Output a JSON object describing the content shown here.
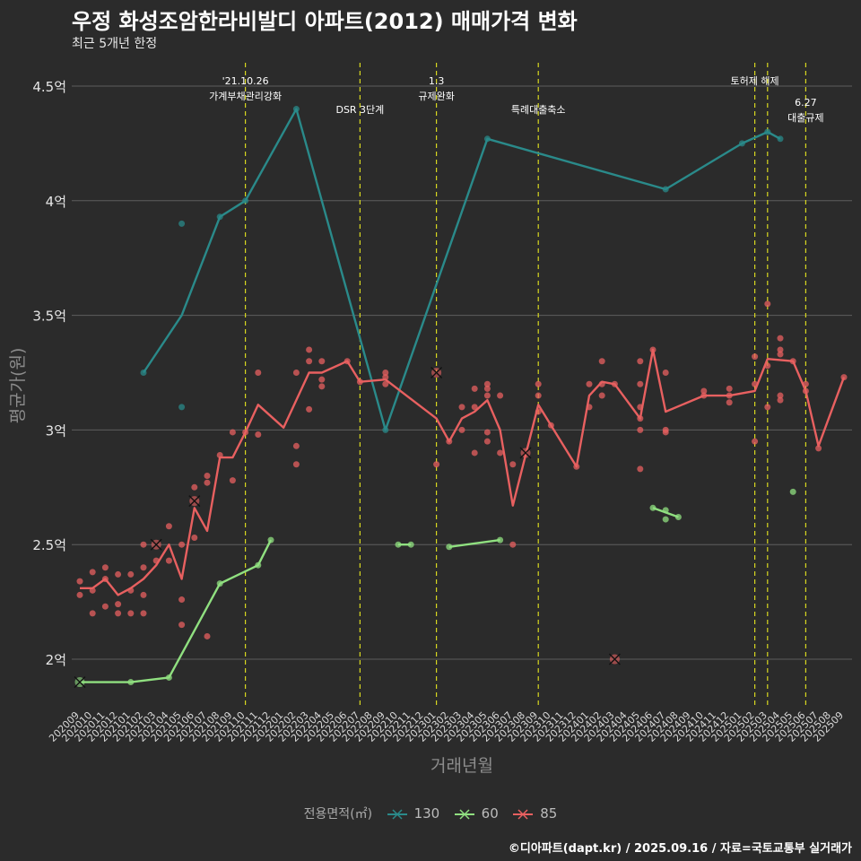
{
  "chart_data": {
    "type": "line",
    "title": "우정 화성조암한라비발디 아파트(2012) 매매가격 변화",
    "subtitle": "최근 5개년 한정",
    "xlabel": "거래년월",
    "ylabel": "평균가(원)",
    "caption": "©디아파트(dapt.kr) / 2025.09.16 / 자료=국토교통부 실거래가",
    "legend_title": "전용면적(㎡)",
    "legend_position": "bottom",
    "grid": true,
    "ylim": [
      1.8,
      4.6
    ],
    "y_ticks": [
      2,
      2.5,
      3,
      3.5,
      4,
      4.5
    ],
    "y_tick_labels": [
      "2억",
      "2.5억",
      "3억",
      "3.5억",
      "4억",
      "4.5억"
    ],
    "x_categories": [
      "202009",
      "202010",
      "202011",
      "202012",
      "202101",
      "202102",
      "202103",
      "202104",
      "202105",
      "202106",
      "202107",
      "202108",
      "202109",
      "202110",
      "202111",
      "202112",
      "202201",
      "202202",
      "202203",
      "202204",
      "202205",
      "202206",
      "202207",
      "202208",
      "202209",
      "202210",
      "202211",
      "202212",
      "202301",
      "202302",
      "202303",
      "202304",
      "202305",
      "202306",
      "202307",
      "202308",
      "202309",
      "202310",
      "202311",
      "202312",
      "202401",
      "202402",
      "202403",
      "202404",
      "202405",
      "202406",
      "202407",
      "202408",
      "202409",
      "202410",
      "202411",
      "202412",
      "202501",
      "202502",
      "202503",
      "202504",
      "202505",
      "202506",
      "202507",
      "202508",
      "202509"
    ],
    "vlines": [
      {
        "x": "202110",
        "label": [
          "'21.10.26",
          "가계부채관리강화"
        ],
        "label_level": "high"
      },
      {
        "x": "202207",
        "label": [
          "DSR 3단계"
        ],
        "label_level": "low"
      },
      {
        "x": "202301",
        "label": [
          "1.3",
          "규제완화"
        ],
        "label_level": "high"
      },
      {
        "x": "202309",
        "label": [
          "특례대출축소"
        ],
        "label_level": "low"
      },
      {
        "x": "202502",
        "label": [
          "토허제 해제"
        ],
        "label_level": "high"
      },
      {
        "x": "202503",
        "label": [],
        "label_level": "low"
      },
      {
        "x": "202506",
        "label": [
          "6.27",
          "대출규제"
        ],
        "label_level": "low"
      }
    ],
    "series": [
      {
        "name": "130",
        "color": "#2a8a8a",
        "line": [
          [
            "202102",
            3.25
          ],
          [
            "202105",
            3.5
          ],
          [
            "202108",
            3.93
          ],
          [
            "202110",
            4.0
          ],
          [
            "202202",
            4.4
          ],
          [
            "202209",
            3.0
          ],
          [
            "202305",
            4.27
          ],
          [
            "202407",
            4.05
          ],
          [
            "202501",
            4.25
          ],
          [
            "202503",
            4.3
          ],
          [
            "202504",
            4.27
          ]
        ],
        "points": [
          [
            "202102",
            3.25
          ],
          [
            "202105",
            3.9
          ],
          [
            "202105",
            3.1
          ],
          [
            "202108",
            3.93
          ],
          [
            "202110",
            4.0
          ],
          [
            "202202",
            4.4
          ],
          [
            "202209",
            3.0
          ],
          [
            "202305",
            4.27
          ],
          [
            "202407",
            4.05
          ],
          [
            "202501",
            4.25
          ],
          [
            "202503",
            4.3
          ],
          [
            "202504",
            4.27
          ]
        ],
        "cancelled": []
      },
      {
        "name": "60",
        "color": "#90e080",
        "line": [
          [
            "202009",
            1.9
          ],
          [
            "202101",
            1.9
          ],
          [
            "202104",
            1.92
          ],
          [
            "202108",
            2.33
          ],
          [
            "202111",
            2.41
          ],
          [
            "202112",
            2.52
          ]
        ],
        "points": [
          [
            "202101",
            1.9
          ],
          [
            "202104",
            1.92
          ],
          [
            "202108",
            2.33
          ],
          [
            "202111",
            2.41
          ],
          [
            "202112",
            2.52
          ],
          [
            "202210",
            2.5
          ],
          [
            "202211",
            2.5
          ],
          [
            "202302",
            2.49
          ],
          [
            "202306",
            2.52
          ],
          [
            "202406",
            2.66
          ],
          [
            "202408",
            2.62
          ],
          [
            "202407",
            2.65
          ],
          [
            "202407",
            2.61
          ],
          [
            "202505",
            2.73
          ]
        ],
        "extra_lines": [
          [
            [
              "202210",
              2.5
            ],
            [
              "202211",
              2.5
            ]
          ],
          [
            [
              "202302",
              2.49
            ],
            [
              "202306",
              2.52
            ]
          ],
          [
            [
              "202406",
              2.66
            ],
            [
              "202408",
              2.62
            ]
          ]
        ],
        "cancelled": [
          [
            "202009",
            1.9
          ]
        ]
      },
      {
        "name": "85",
        "color": "#e86060",
        "line": [
          [
            "202009",
            2.31
          ],
          [
            "202010",
            2.31
          ],
          [
            "202011",
            2.35
          ],
          [
            "202012",
            2.28
          ],
          [
            "202101",
            2.31
          ],
          [
            "202102",
            2.35
          ],
          [
            "202103",
            2.41
          ],
          [
            "202104",
            2.5
          ],
          [
            "202105",
            2.35
          ],
          [
            "202106",
            2.66
          ],
          [
            "202107",
            2.56
          ],
          [
            "202108",
            2.88
          ],
          [
            "202109",
            2.88
          ],
          [
            "202110",
            2.99
          ],
          [
            "202111",
            3.11
          ],
          [
            "202201",
            3.01
          ],
          [
            "202203",
            3.25
          ],
          [
            "202204",
            3.25
          ],
          [
            "202206",
            3.3
          ],
          [
            "202207",
            3.21
          ],
          [
            "202209",
            3.22
          ],
          [
            "202301",
            3.05
          ],
          [
            "202302",
            2.95
          ],
          [
            "202303",
            3.05
          ],
          [
            "202304",
            3.08
          ],
          [
            "202305",
            3.13
          ],
          [
            "202306",
            3.0
          ],
          [
            "202307",
            2.67
          ],
          [
            "202309",
            3.11
          ],
          [
            "202312",
            2.84
          ],
          [
            "202401",
            3.15
          ],
          [
            "202402",
            3.21
          ],
          [
            "202403",
            3.2
          ],
          [
            "202405",
            3.05
          ],
          [
            "202406",
            3.35
          ],
          [
            "202407",
            3.08
          ],
          [
            "202410",
            3.15
          ],
          [
            "202412",
            3.15
          ],
          [
            "202502",
            3.17
          ],
          [
            "202503",
            3.31
          ],
          [
            "202505",
            3.3
          ],
          [
            "202506",
            3.17
          ],
          [
            "202507",
            2.93
          ],
          [
            "202509",
            3.23
          ]
        ],
        "points": [
          [
            "202009",
            2.34
          ],
          [
            "202009",
            2.28
          ],
          [
            "202010",
            2.38
          ],
          [
            "202010",
            2.3
          ],
          [
            "202010",
            2.2
          ],
          [
            "202011",
            2.4
          ],
          [
            "202011",
            2.35
          ],
          [
            "202011",
            2.23
          ],
          [
            "202012",
            2.37
          ],
          [
            "202012",
            2.24
          ],
          [
            "202012",
            2.2
          ],
          [
            "202101",
            2.37
          ],
          [
            "202101",
            2.3
          ],
          [
            "202101",
            2.2
          ],
          [
            "202102",
            2.5
          ],
          [
            "202102",
            2.4
          ],
          [
            "202102",
            2.28
          ],
          [
            "202102",
            2.2
          ],
          [
            "202103",
            2.43
          ],
          [
            "202104",
            2.58
          ],
          [
            "202104",
            2.43
          ],
          [
            "202105",
            2.5
          ],
          [
            "202105",
            2.26
          ],
          [
            "202105",
            2.15
          ],
          [
            "202106",
            2.75
          ],
          [
            "202106",
            2.53
          ],
          [
            "202107",
            2.8
          ],
          [
            "202107",
            2.77
          ],
          [
            "202107",
            2.1
          ],
          [
            "202108",
            2.89
          ],
          [
            "202109",
            2.99
          ],
          [
            "202109",
            2.78
          ],
          [
            "202110",
            2.99
          ],
          [
            "202111",
            3.25
          ],
          [
            "202111",
            2.98
          ],
          [
            "202202",
            3.25
          ],
          [
            "202202",
            2.93
          ],
          [
            "202202",
            2.85
          ],
          [
            "202203",
            3.35
          ],
          [
            "202203",
            3.3
          ],
          [
            "202203",
            3.09
          ],
          [
            "202204",
            3.3
          ],
          [
            "202204",
            3.22
          ],
          [
            "202204",
            3.19
          ],
          [
            "202206",
            3.3
          ],
          [
            "202207",
            3.21
          ],
          [
            "202209",
            3.25
          ],
          [
            "202209",
            3.23
          ],
          [
            "202209",
            3.2
          ],
          [
            "202301",
            2.85
          ],
          [
            "202302",
            2.95
          ],
          [
            "202303",
            3.1
          ],
          [
            "202303",
            3.0
          ],
          [
            "202304",
            3.18
          ],
          [
            "202304",
            3.1
          ],
          [
            "202304",
            2.9
          ],
          [
            "202305",
            3.2
          ],
          [
            "202305",
            3.18
          ],
          [
            "202305",
            3.15
          ],
          [
            "202305",
            2.99
          ],
          [
            "202305",
            2.95
          ],
          [
            "202306",
            3.15
          ],
          [
            "202306",
            2.9
          ],
          [
            "202307",
            2.85
          ],
          [
            "202307",
            2.5
          ],
          [
            "202309",
            3.2
          ],
          [
            "202309",
            3.15
          ],
          [
            "202309",
            3.08
          ],
          [
            "202310",
            3.02
          ],
          [
            "202312",
            2.84
          ],
          [
            "202401",
            3.2
          ],
          [
            "202401",
            3.1
          ],
          [
            "202402",
            3.3
          ],
          [
            "202402",
            3.2
          ],
          [
            "202402",
            3.15
          ],
          [
            "202403",
            3.2
          ],
          [
            "202405",
            3.3
          ],
          [
            "202405",
            3.2
          ],
          [
            "202405",
            3.1
          ],
          [
            "202405",
            3.05
          ],
          [
            "202405",
            3.0
          ],
          [
            "202405",
            2.83
          ],
          [
            "202406",
            3.35
          ],
          [
            "202407",
            3.25
          ],
          [
            "202407",
            3.0
          ],
          [
            "202407",
            2.99
          ],
          [
            "202410",
            3.17
          ],
          [
            "202410",
            3.15
          ],
          [
            "202412",
            3.18
          ],
          [
            "202412",
            3.15
          ],
          [
            "202412",
            3.12
          ],
          [
            "202502",
            3.32
          ],
          [
            "202502",
            3.2
          ],
          [
            "202502",
            2.95
          ],
          [
            "202503",
            3.55
          ],
          [
            "202503",
            3.28
          ],
          [
            "202503",
            3.1
          ],
          [
            "202504",
            3.4
          ],
          [
            "202504",
            3.35
          ],
          [
            "202504",
            3.33
          ],
          [
            "202504",
            3.15
          ],
          [
            "202504",
            3.13
          ],
          [
            "202505",
            3.3
          ],
          [
            "202506",
            3.2
          ],
          [
            "202506",
            3.17
          ],
          [
            "202507",
            2.92
          ],
          [
            "202509",
            3.23
          ]
        ],
        "cancelled": [
          [
            "202103",
            2.5
          ],
          [
            "202106",
            2.69
          ],
          [
            "202301",
            3.25
          ],
          [
            "202308",
            2.9
          ],
          [
            "202403",
            2.0
          ]
        ]
      }
    ]
  }
}
